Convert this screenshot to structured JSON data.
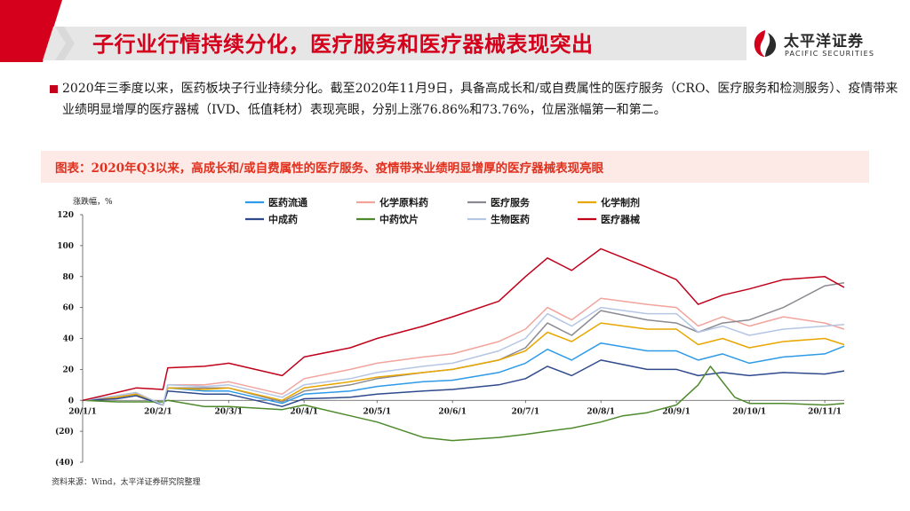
{
  "slide": {
    "title": "子行业行情持续分化，医疗服务和医疗器械表现突出",
    "logo_cn": "太平洋证券",
    "logo_en": "PACIFIC SECURITIES",
    "bullet": "2020年三季度以来，医药板块子行业持续分化。截至2020年11月9日，具备高成长和/或自费属性的医疗服务（CRO、医疗服务和检测服务）、疫情带来业绩明显增厚的医疗器械（IVD、低值耗材）表现亮眼，分别上涨76.86%和73.76%，位居涨幅第一和第二。",
    "chart_title": "图表：2020年Q3以来，高成长和/或自费属性的医疗服务、疫情带来业绩明显增厚的医疗器械表现亮眼",
    "source": "资料来源：Wind，太平洋证券研究院整理"
  },
  "colors": {
    "brand_red": "#d4001c",
    "header_gray": "#e6e6e6",
    "panel_bg": "#fde9e6"
  },
  "chart_data": {
    "type": "line",
    "ylabel": "涨跌幅，%",
    "ylim": [
      -40,
      120
    ],
    "yticks": [
      -40,
      -20,
      0,
      20,
      40,
      60,
      80,
      100,
      120
    ],
    "ytick_labels": [
      "(40)",
      "(20)",
      "0",
      "20",
      "40",
      "60",
      "80",
      "100",
      "120"
    ],
    "x_start": "2020-01-01",
    "x_end": "2020-11-09",
    "xticks": [
      "2020-01-01",
      "2020-02-01",
      "2020-03-01",
      "2020-04-01",
      "2020-05-01",
      "2020-06-01",
      "2020-07-01",
      "2020-08-01",
      "2020-09-01",
      "2020-10-01",
      "2020-11-01"
    ],
    "xtick_labels": [
      "20/1/1",
      "20/2/1",
      "20/3/1",
      "20/4/1",
      "20/5/1",
      "20/6/1",
      "20/7/1",
      "20/8/1",
      "20/9/1",
      "20/10/1",
      "20/11/1"
    ],
    "grid": false,
    "legend_position": "top",
    "series": [
      {
        "name": "医药流通",
        "color": "#2e9ae8",
        "x": [
          "2020-01-01",
          "2020-01-15",
          "2020-01-23",
          "2020-02-03",
          "2020-02-05",
          "2020-02-20",
          "2020-03-01",
          "2020-03-23",
          "2020-04-01",
          "2020-04-20",
          "2020-05-01",
          "2020-05-20",
          "2020-06-01",
          "2020-06-20",
          "2020-07-01",
          "2020-07-10",
          "2020-07-20",
          "2020-08-01",
          "2020-08-20",
          "2020-09-01",
          "2020-09-10",
          "2020-09-20",
          "2020-10-01",
          "2020-10-15",
          "2020-11-01",
          "2020-11-09"
        ],
        "values": [
          0,
          2,
          4,
          -3,
          8,
          6,
          6,
          -2,
          4,
          6,
          9,
          12,
          13,
          18,
          24,
          33,
          26,
          37,
          32,
          32,
          26,
          30,
          24,
          28,
          30,
          35
        ]
      },
      {
        "name": "化学原料药",
        "color": "#f2a39b",
        "x": [
          "2020-01-01",
          "2020-01-15",
          "2020-01-23",
          "2020-02-03",
          "2020-02-05",
          "2020-02-20",
          "2020-03-01",
          "2020-03-23",
          "2020-04-01",
          "2020-04-20",
          "2020-05-01",
          "2020-05-20",
          "2020-06-01",
          "2020-06-20",
          "2020-07-01",
          "2020-07-10",
          "2020-07-20",
          "2020-08-01",
          "2020-08-20",
          "2020-09-01",
          "2020-09-10",
          "2020-09-20",
          "2020-10-01",
          "2020-10-15",
          "2020-11-01",
          "2020-11-09"
        ],
        "values": [
          0,
          3,
          5,
          -3,
          10,
          10,
          12,
          4,
          14,
          20,
          24,
          28,
          30,
          38,
          46,
          60,
          52,
          66,
          62,
          60,
          48,
          54,
          48,
          54,
          50,
          46
        ]
      },
      {
        "name": "医疗服务",
        "color": "#8a8a92",
        "x": [
          "2020-01-01",
          "2020-01-15",
          "2020-01-23",
          "2020-02-03",
          "2020-02-05",
          "2020-02-20",
          "2020-03-01",
          "2020-03-23",
          "2020-04-01",
          "2020-04-20",
          "2020-05-01",
          "2020-05-20",
          "2020-06-01",
          "2020-06-20",
          "2020-07-01",
          "2020-07-10",
          "2020-07-20",
          "2020-08-01",
          "2020-08-20",
          "2020-09-01",
          "2020-09-10",
          "2020-09-20",
          "2020-10-01",
          "2020-10-15",
          "2020-11-01",
          "2020-11-09"
        ],
        "values": [
          0,
          2,
          4,
          -3,
          8,
          8,
          8,
          -1,
          6,
          10,
          14,
          18,
          20,
          26,
          34,
          50,
          42,
          58,
          52,
          50,
          44,
          50,
          52,
          60,
          74,
          76
        ]
      },
      {
        "name": "化学制剂",
        "color": "#e8a600",
        "x": [
          "2020-01-01",
          "2020-01-15",
          "2020-01-23",
          "2020-02-03",
          "2020-02-05",
          "2020-02-20",
          "2020-03-01",
          "2020-03-23",
          "2020-04-01",
          "2020-04-20",
          "2020-05-01",
          "2020-05-20",
          "2020-06-01",
          "2020-06-20",
          "2020-07-01",
          "2020-07-10",
          "2020-07-20",
          "2020-08-01",
          "2020-08-20",
          "2020-09-01",
          "2020-09-10",
          "2020-09-20",
          "2020-10-01",
          "2020-10-15",
          "2020-11-01",
          "2020-11-09"
        ],
        "values": [
          0,
          2,
          4,
          -3,
          8,
          7,
          8,
          0,
          8,
          12,
          15,
          18,
          20,
          26,
          32,
          44,
          38,
          50,
          46,
          46,
          36,
          40,
          34,
          38,
          40,
          36
        ]
      },
      {
        "name": "中成药",
        "color": "#2f4a8c",
        "x": [
          "2020-01-01",
          "2020-01-15",
          "2020-01-23",
          "2020-02-03",
          "2020-02-05",
          "2020-02-20",
          "2020-03-01",
          "2020-03-23",
          "2020-04-01",
          "2020-04-20",
          "2020-05-01",
          "2020-05-20",
          "2020-06-01",
          "2020-06-20",
          "2020-07-01",
          "2020-07-10",
          "2020-07-20",
          "2020-08-01",
          "2020-08-20",
          "2020-09-01",
          "2020-09-10",
          "2020-09-20",
          "2020-10-01",
          "2020-10-15",
          "2020-11-01",
          "2020-11-09"
        ],
        "values": [
          0,
          1,
          3,
          -3,
          6,
          4,
          4,
          -4,
          1,
          2,
          4,
          6,
          7,
          10,
          14,
          22,
          16,
          26,
          20,
          20,
          16,
          18,
          16,
          18,
          17,
          19
        ]
      },
      {
        "name": "中药饮片",
        "color": "#4e8a2c",
        "x": [
          "2020-01-01",
          "2020-01-15",
          "2020-01-23",
          "2020-02-03",
          "2020-02-05",
          "2020-02-20",
          "2020-03-01",
          "2020-03-23",
          "2020-04-01",
          "2020-04-20",
          "2020-05-01",
          "2020-05-20",
          "2020-06-01",
          "2020-06-20",
          "2020-07-01",
          "2020-07-10",
          "2020-07-20",
          "2020-08-01",
          "2020-08-10",
          "2020-08-20",
          "2020-09-01",
          "2020-09-10",
          "2020-09-15",
          "2020-09-25",
          "2020-10-01",
          "2020-10-15",
          "2020-11-01",
          "2020-11-09"
        ],
        "values": [
          0,
          -1,
          -1,
          -1,
          0,
          -4,
          -4,
          -6,
          -3,
          -10,
          -14,
          -24,
          -26,
          -24,
          -22,
          -20,
          -18,
          -14,
          -10,
          -8,
          -3,
          10,
          22,
          2,
          -2,
          -2,
          -3,
          -2
        ]
      },
      {
        "name": "生物医药",
        "color": "#b4c6e4",
        "x": [
          "2020-01-01",
          "2020-01-15",
          "2020-01-23",
          "2020-02-03",
          "2020-02-05",
          "2020-02-20",
          "2020-03-01",
          "2020-03-23",
          "2020-04-01",
          "2020-04-20",
          "2020-05-01",
          "2020-05-20",
          "2020-06-01",
          "2020-06-20",
          "2020-07-01",
          "2020-07-10",
          "2020-07-20",
          "2020-08-01",
          "2020-08-20",
          "2020-09-01",
          "2020-09-10",
          "2020-09-20",
          "2020-10-01",
          "2020-10-15",
          "2020-11-01",
          "2020-11-09"
        ],
        "values": [
          0,
          3,
          5,
          -3,
          10,
          9,
          10,
          2,
          10,
          14,
          18,
          22,
          24,
          32,
          40,
          56,
          48,
          60,
          56,
          56,
          44,
          48,
          42,
          46,
          48,
          49
        ]
      },
      {
        "name": "医疗器械",
        "color": "#c0001a",
        "x": [
          "2020-01-01",
          "2020-01-15",
          "2020-01-23",
          "2020-02-03",
          "2020-02-05",
          "2020-02-20",
          "2020-03-01",
          "2020-03-23",
          "2020-04-01",
          "2020-04-20",
          "2020-05-01",
          "2020-05-20",
          "2020-06-01",
          "2020-06-20",
          "2020-07-01",
          "2020-07-10",
          "2020-07-20",
          "2020-08-01",
          "2020-08-20",
          "2020-09-01",
          "2020-09-10",
          "2020-09-20",
          "2020-10-01",
          "2020-10-15",
          "2020-11-01",
          "2020-11-09"
        ],
        "values": [
          0,
          5,
          8,
          7,
          21,
          22,
          24,
          16,
          28,
          34,
          40,
          48,
          54,
          64,
          80,
          92,
          84,
          98,
          86,
          78,
          62,
          68,
          72,
          78,
          80,
          73
        ]
      }
    ]
  }
}
